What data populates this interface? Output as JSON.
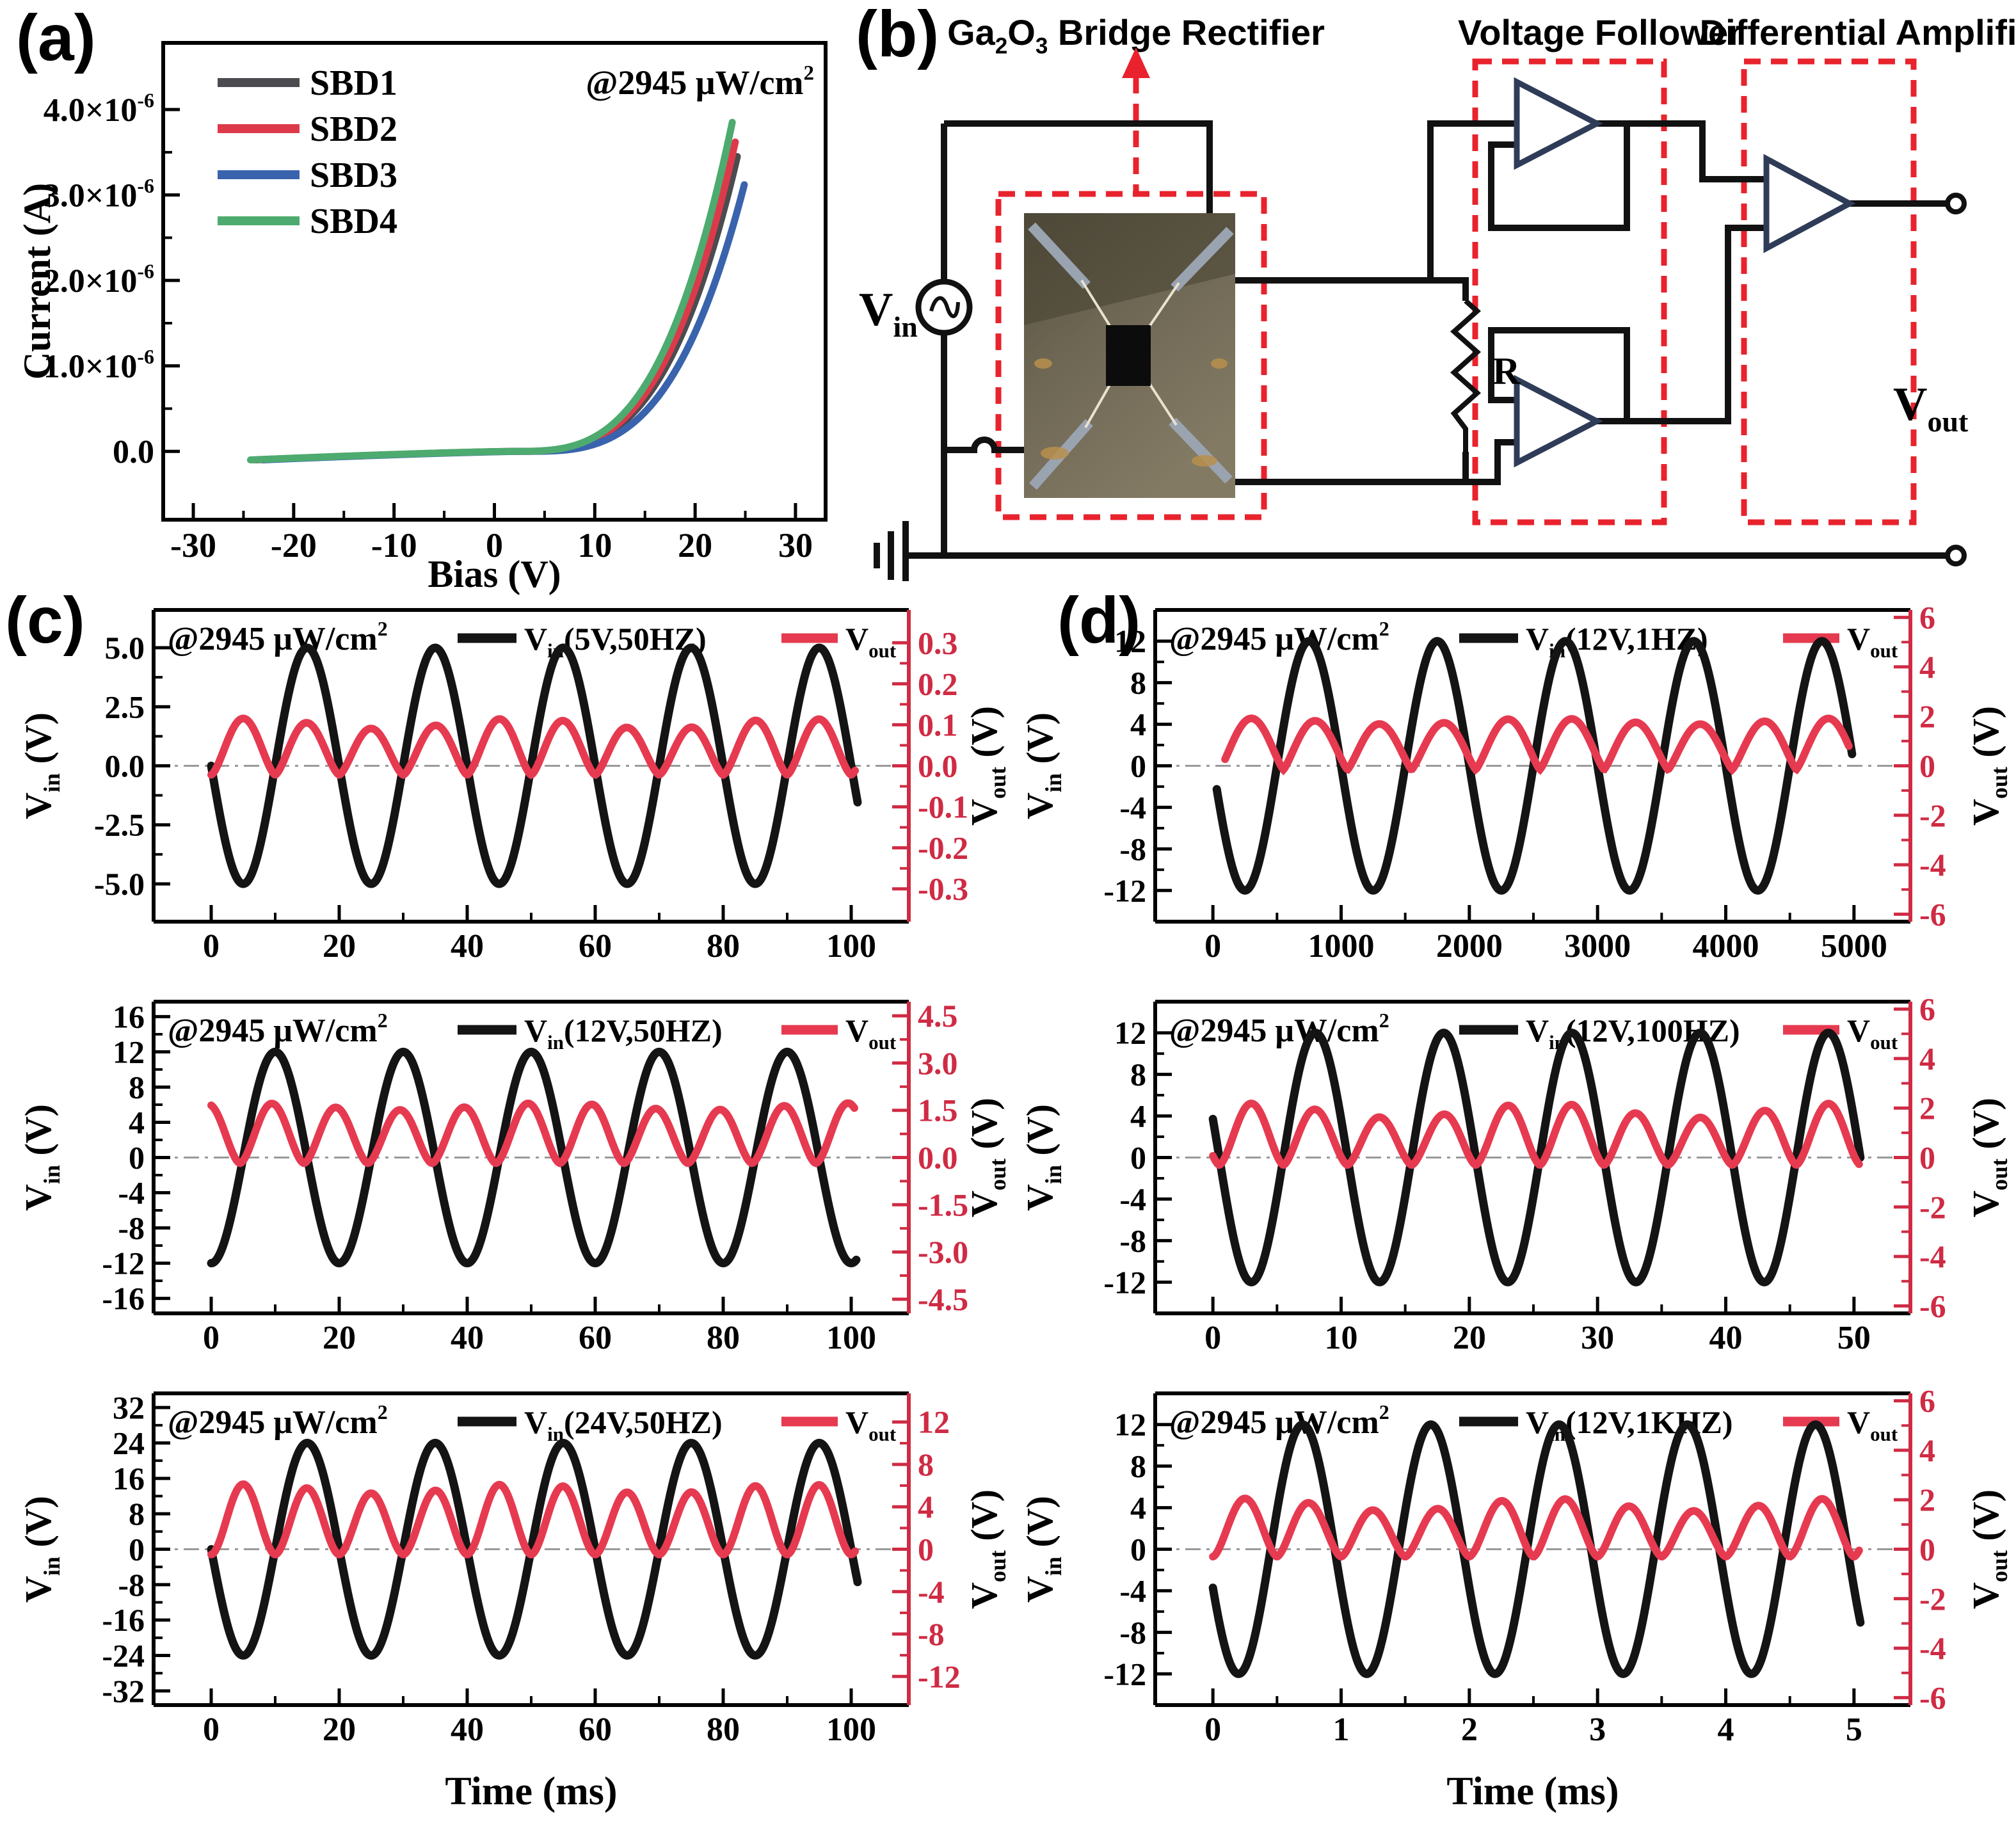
{
  "figure_labels": {
    "a": "(a)",
    "b": "(b)",
    "c": "(c)",
    "d": "(d)"
  },
  "colors": {
    "curve_black": "#141414",
    "curve_red": "#e63a50",
    "axis_red": "#cf2b44",
    "dash_red": "#e8232d",
    "zero_gray": "#999999",
    "triangle_stroke": "#2e3c58",
    "wire_black": "#111111"
  },
  "circuit": {
    "labels": {
      "bridge": "Ga_{2}O_{3} Bridge Rectifier",
      "follower": "Voltage  Follower",
      "diff": "Differential  Amplifier",
      "vin": "V_{in}",
      "vout": "V_{out}",
      "resistor": "R"
    }
  },
  "chart_data": [
    {
      "id": "a",
      "type": "line",
      "kind": "iv",
      "title": "",
      "annotation": "@2945 μW/cm^{2}",
      "xlabel": "Bias (V)",
      "ylabel": "Current (A)",
      "xlim": [
        -33,
        33
      ],
      "ylim_uA": [
        -0.8,
        4.78
      ],
      "x_ticks": [
        {
          "v": -30,
          "label": "-30"
        },
        {
          "v": -20,
          "label": "-20"
        },
        {
          "v": -10,
          "label": "-10"
        },
        {
          "v": 0,
          "label": "0"
        },
        {
          "v": 10,
          "label": "10"
        },
        {
          "v": 20,
          "label": "20"
        },
        {
          "v": 30,
          "label": "30"
        }
      ],
      "y_ticks": [
        {
          "v": 0,
          "label": "0.0"
        },
        {
          "v": 1,
          "label": "1.0×10^{-6}"
        },
        {
          "v": 2,
          "label": "2.0×10^{-6}"
        },
        {
          "v": 3,
          "label": "3.0×10^{-6}"
        },
        {
          "v": 4,
          "label": "4.0×10^{-6}"
        }
      ],
      "series": [
        {
          "name": "SBD1",
          "color": "#4b4b50",
          "imax_uA": 3.45,
          "xshift": 0.2
        },
        {
          "name": "SBD2",
          "color": "#dc3a4a",
          "imax_uA": 3.62,
          "xshift": 0.0
        },
        {
          "name": "SBD3",
          "color": "#3a63ad",
          "imax_uA": 3.12,
          "xshift": 0.9
        },
        {
          "name": "SBD4",
          "color": "#4dab6f",
          "imax_uA": 3.85,
          "xshift": -0.3
        }
      ],
      "model": {
        "v_range": [
          -24,
          24
        ],
        "leak_uA": 0.1,
        "turn_on_v": 2,
        "span": 22,
        "power": 3.2
      },
      "legend_position": "top-left"
    },
    {
      "id": "c1",
      "type": "line",
      "kind": "wave",
      "annotation": "@2945 μW/cm^{2}",
      "legend_vin": "V_{in}(5V,50HZ)",
      "legend_vout": "V_{out}",
      "ylabel_left": "V_{in} (V)",
      "ylabel_right": "V_{out} (V)",
      "xlabel": null,
      "xlim": [
        -9,
        109
      ],
      "x_ticks": [
        {
          "v": 0,
          "label": "0"
        },
        {
          "v": 20,
          "label": "20"
        },
        {
          "v": 40,
          "label": "40"
        },
        {
          "v": 60,
          "label": "60"
        },
        {
          "v": 80,
          "label": "80"
        },
        {
          "v": 100,
          "label": "100"
        }
      ],
      "left_lim": [
        -6.6,
        6.6
      ],
      "left_ticks": [
        {
          "v": 5,
          "label": "5.0"
        },
        {
          "v": 2.5,
          "label": "2.5"
        },
        {
          "v": 0,
          "label": "0.0"
        },
        {
          "v": -2.5,
          "label": "-2.5"
        },
        {
          "v": -5,
          "label": "-5.0"
        }
      ],
      "right_lim": [
        -0.38,
        0.38
      ],
      "right_ticks": [
        {
          "v": 0.3,
          "label": "0.3"
        },
        {
          "v": 0.2,
          "label": "0.2"
        },
        {
          "v": 0.1,
          "label": "0.1"
        },
        {
          "v": 0,
          "label": "0.0"
        },
        {
          "v": -0.1,
          "label": "-0.1"
        },
        {
          "v": -0.2,
          "label": "-0.2"
        },
        {
          "v": -0.3,
          "label": "-0.3"
        }
      ],
      "vin": {
        "amp": 5,
        "period": 20,
        "t0": 10,
        "trange": [
          0,
          101
        ]
      },
      "vout": {
        "peak": 0.125,
        "dip": 0.022,
        "power": 1.5,
        "half": 10,
        "shift": 0,
        "mod": 0.1,
        "mod_period": 43,
        "trange": [
          0,
          100.6
        ]
      }
    },
    {
      "id": "c2",
      "type": "line",
      "kind": "wave",
      "annotation": "@2945 μW/cm^{2}",
      "legend_vin": "V_{in}(12V,50HZ)",
      "legend_vout": "V_{out}",
      "ylabel_left": "V_{in} (V)",
      "ylabel_right": "V_{out} (V)",
      "xlabel": null,
      "xlim": [
        -9,
        109
      ],
      "x_ticks": [
        {
          "v": 0,
          "label": "0"
        },
        {
          "v": 20,
          "label": "20"
        },
        {
          "v": 40,
          "label": "40"
        },
        {
          "v": 60,
          "label": "60"
        },
        {
          "v": 80,
          "label": "80"
        },
        {
          "v": 100,
          "label": "100"
        }
      ],
      "left_lim": [
        -17.7,
        17.7
      ],
      "left_ticks": [
        {
          "v": 16,
          "label": "16"
        },
        {
          "v": 12,
          "label": "12"
        },
        {
          "v": 8,
          "label": "8"
        },
        {
          "v": 4,
          "label": "4"
        },
        {
          "v": 0,
          "label": "0"
        },
        {
          "v": -4,
          "label": "-4"
        },
        {
          "v": -8,
          "label": "-8"
        },
        {
          "v": -12,
          "label": "-12"
        },
        {
          "v": -16,
          "label": "-16"
        }
      ],
      "right_lim": [
        -4.95,
        4.95
      ],
      "right_ticks": [
        {
          "v": 4.5,
          "label": "4.5"
        },
        {
          "v": 3,
          "label": "3.0"
        },
        {
          "v": 1.5,
          "label": "1.5"
        },
        {
          "v": 0,
          "label": "0.0"
        },
        {
          "v": -1.5,
          "label": "-1.5"
        },
        {
          "v": -3,
          "label": "-3.0"
        },
        {
          "v": -4.5,
          "label": "-4.5"
        }
      ],
      "vin": {
        "amp": 12,
        "period": 20,
        "t0": 5,
        "trange": [
          0,
          100.8
        ]
      },
      "vout": {
        "peak": 1.8,
        "dip": 0.18,
        "power": 1.7,
        "half": 10,
        "shift": 4.5,
        "mod": 0.06,
        "mod_period": 47,
        "trange": [
          0,
          100.5
        ]
      }
    },
    {
      "id": "c3",
      "type": "line",
      "kind": "wave",
      "annotation": "@2945 μW/cm^{2}",
      "legend_vin": "V_{in}(24V,50HZ)",
      "legend_vout": "V_{out}",
      "ylabel_left": "V_{in} (V)",
      "ylabel_right": "V_{out} (V)",
      "xlabel": "Time (ms)",
      "xlim": [
        -9,
        109
      ],
      "x_ticks": [
        {
          "v": 0,
          "label": "0"
        },
        {
          "v": 20,
          "label": "20"
        },
        {
          "v": 40,
          "label": "40"
        },
        {
          "v": 60,
          "label": "60"
        },
        {
          "v": 80,
          "label": "80"
        },
        {
          "v": 100,
          "label": "100"
        }
      ],
      "left_lim": [
        -35.2,
        35.2
      ],
      "left_ticks": [
        {
          "v": 32,
          "label": "32"
        },
        {
          "v": 24,
          "label": "24"
        },
        {
          "v": 16,
          "label": "16"
        },
        {
          "v": 8,
          "label": "8"
        },
        {
          "v": 0,
          "label": "0"
        },
        {
          "v": -8,
          "label": "-8"
        },
        {
          "v": -16,
          "label": "-16"
        },
        {
          "v": -24,
          "label": "-24"
        },
        {
          "v": -32,
          "label": "-32"
        }
      ],
      "right_lim": [
        -14.7,
        14.7
      ],
      "right_ticks": [
        {
          "v": 12,
          "label": "12"
        },
        {
          "v": 8,
          "label": "8"
        },
        {
          "v": 4,
          "label": "4"
        },
        {
          "v": 0,
          "label": "0"
        },
        {
          "v": -4,
          "label": "-4"
        },
        {
          "v": -8,
          "label": "-8"
        },
        {
          "v": -12,
          "label": "-12"
        }
      ],
      "vin": {
        "amp": 24,
        "period": 20,
        "t0": 10,
        "trange": [
          0,
          101
        ]
      },
      "vout": {
        "peak": 6.2,
        "dip": 0.5,
        "power": 1.8,
        "half": 10,
        "shift": 0,
        "mod": 0.07,
        "mod_period": 43,
        "trange": [
          0,
          100.6
        ]
      }
    },
    {
      "id": "d1",
      "type": "line",
      "kind": "wave",
      "annotation": "@2945 μW/cm^{2}",
      "legend_vin": "V_{in}(12V,1HZ)",
      "legend_vout": "V_{out}",
      "ylabel_left": "V_{in} (V)",
      "ylabel_right": "V_{out} (V)",
      "xlabel": null,
      "xlim": [
        -450,
        5440
      ],
      "x_ticks": [
        {
          "v": 0,
          "label": "0"
        },
        {
          "v": 1000,
          "label": "1000"
        },
        {
          "v": 2000,
          "label": "2000"
        },
        {
          "v": 3000,
          "label": "3000"
        },
        {
          "v": 4000,
          "label": "4000"
        },
        {
          "v": 5000,
          "label": "5000"
        }
      ],
      "left_lim": [
        -15,
        15
      ],
      "left_ticks": [
        {
          "v": 12,
          "label": "12"
        },
        {
          "v": 8,
          "label": "8"
        },
        {
          "v": 4,
          "label": "4"
        },
        {
          "v": 0,
          "label": "0"
        },
        {
          "v": -4,
          "label": "-4"
        },
        {
          "v": -8,
          "label": "-8"
        },
        {
          "v": -12,
          "label": "-12"
        }
      ],
      "right_lim": [
        -6.3,
        6.3
      ],
      "right_ticks": [
        {
          "v": 6,
          "label": "6"
        },
        {
          "v": 4,
          "label": "4"
        },
        {
          "v": 2,
          "label": "2"
        },
        {
          "v": 0,
          "label": "0"
        },
        {
          "v": -2,
          "label": "-2"
        },
        {
          "v": -4,
          "label": "-4"
        },
        {
          "v": -6,
          "label": "-6"
        }
      ],
      "vin": {
        "amp": 12,
        "period": 1000,
        "t0": 500,
        "trange": [
          30,
          4985
        ]
      },
      "vout": {
        "peak": 1.95,
        "dip": 0.15,
        "power": 1.25,
        "half": 500,
        "shift": 50,
        "mod": 0.06,
        "mod_period": 2300,
        "trange": [
          95,
          4960
        ]
      }
    },
    {
      "id": "d2",
      "type": "line",
      "kind": "wave",
      "annotation": "@2945 μW/cm^{2}",
      "legend_vin": "V_{in}(12V,100HZ)",
      "legend_vout": "V_{out}",
      "ylabel_left": "V_{in} (V)",
      "ylabel_right": "V_{out} (V)",
      "xlabel": null,
      "xlim": [
        -4.5,
        54.4
      ],
      "x_ticks": [
        {
          "v": 0,
          "label": "0"
        },
        {
          "v": 10,
          "label": "10"
        },
        {
          "v": 20,
          "label": "20"
        },
        {
          "v": 30,
          "label": "30"
        },
        {
          "v": 40,
          "label": "40"
        },
        {
          "v": 50,
          "label": "50"
        }
      ],
      "left_lim": [
        -15,
        15
      ],
      "left_ticks": [
        {
          "v": 12,
          "label": "12"
        },
        {
          "v": 8,
          "label": "8"
        },
        {
          "v": 4,
          "label": "4"
        },
        {
          "v": 0,
          "label": "0"
        },
        {
          "v": -4,
          "label": "-4"
        },
        {
          "v": -8,
          "label": "-8"
        },
        {
          "v": -12,
          "label": "-12"
        }
      ],
      "right_lim": [
        -6.3,
        6.3
      ],
      "right_ticks": [
        {
          "v": 6,
          "label": "6"
        },
        {
          "v": 4,
          "label": "4"
        },
        {
          "v": 2,
          "label": "2"
        },
        {
          "v": 0,
          "label": "0"
        },
        {
          "v": -2,
          "label": "-2"
        },
        {
          "v": -4,
          "label": "-4"
        },
        {
          "v": -6,
          "label": "-6"
        }
      ],
      "vin": {
        "amp": 12,
        "period": 10,
        "t0": 5.5,
        "trange": [
          0,
          50.5
        ]
      },
      "vout": {
        "peak": 2.2,
        "dip": 0.3,
        "power": 1.6,
        "half": 5,
        "shift": 0.5,
        "mod": 0.13,
        "mod_period": 23,
        "trange": [
          0,
          50.4
        ]
      }
    },
    {
      "id": "d3",
      "type": "line",
      "kind": "wave",
      "annotation": "@2945 μW/cm^{2}",
      "legend_vin": "V_{in}(12V,1KHZ)",
      "legend_vout": "V_{out}",
      "ylabel_left": "V_{in} (V)",
      "ylabel_right": "V_{out} (V)",
      "xlabel": "Time (ms)",
      "xlim": [
        -0.45,
        5.44
      ],
      "x_ticks": [
        {
          "v": 0,
          "label": "0"
        },
        {
          "v": 1,
          "label": "1"
        },
        {
          "v": 2,
          "label": "2"
        },
        {
          "v": 3,
          "label": "3"
        },
        {
          "v": 4,
          "label": "4"
        },
        {
          "v": 5,
          "label": "5"
        }
      ],
      "left_lim": [
        -15,
        15
      ],
      "left_ticks": [
        {
          "v": 12,
          "label": "12"
        },
        {
          "v": 8,
          "label": "8"
        },
        {
          "v": 4,
          "label": "4"
        },
        {
          "v": 0,
          "label": "0"
        },
        {
          "v": -4,
          "label": "-4"
        },
        {
          "v": -8,
          "label": "-8"
        },
        {
          "v": -12,
          "label": "-12"
        }
      ],
      "right_lim": [
        -6.3,
        6.3
      ],
      "right_ticks": [
        {
          "v": 6,
          "label": "6"
        },
        {
          "v": 4,
          "label": "4"
        },
        {
          "v": 2,
          "label": "2"
        },
        {
          "v": 0,
          "label": "0"
        },
        {
          "v": -2,
          "label": "-2"
        },
        {
          "v": -4,
          "label": "-4"
        },
        {
          "v": -6,
          "label": "-6"
        }
      ],
      "vin": {
        "amp": 12,
        "period": 1,
        "t0": 0.45,
        "trange": [
          0,
          5.05
        ]
      },
      "vout": {
        "peak": 2.1,
        "dip": 0.3,
        "power": 1.6,
        "half": 0.5,
        "shift": 0,
        "mod": 0.12,
        "mod_period": 2.3,
        "trange": [
          0,
          5.04
        ]
      }
    }
  ]
}
